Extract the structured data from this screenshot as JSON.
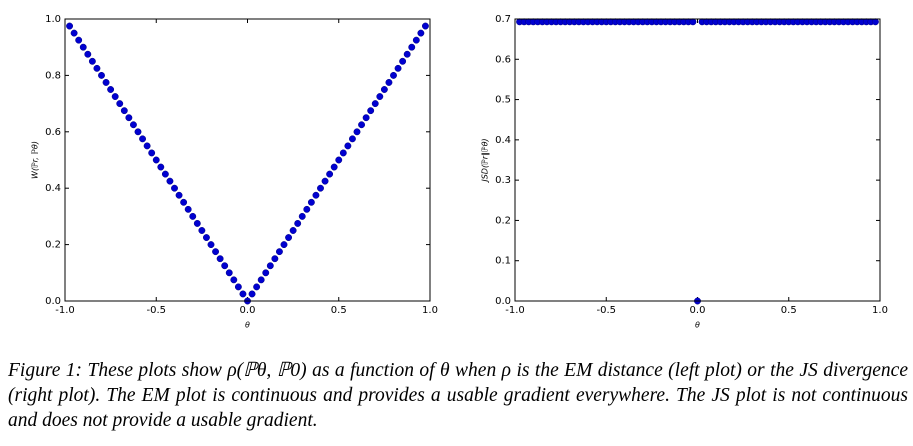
{
  "chart_data": [
    {
      "type": "scatter",
      "ylabel": "W(ℙr, ℙθ)",
      "xlabel": "θ",
      "color": "#0000d0",
      "x": [
        -0.975,
        -0.95,
        -0.925,
        -0.9,
        -0.875,
        -0.85,
        -0.825,
        -0.8,
        -0.775,
        -0.75,
        -0.725,
        -0.7,
        -0.675,
        -0.65,
        -0.625,
        -0.6,
        -0.575,
        -0.55,
        -0.525,
        -0.5,
        -0.475,
        -0.45,
        -0.425,
        -0.4,
        -0.375,
        -0.35,
        -0.325,
        -0.3,
        -0.275,
        -0.25,
        -0.225,
        -0.2,
        -0.175,
        -0.15,
        -0.125,
        -0.1,
        -0.075,
        -0.05,
        -0.025,
        0,
        0.025,
        0.05,
        0.075,
        0.1,
        0.125,
        0.15,
        0.175,
        0.2,
        0.225,
        0.25,
        0.275,
        0.3,
        0.325,
        0.35,
        0.375,
        0.4,
        0.425,
        0.45,
        0.475,
        0.5,
        0.525,
        0.55,
        0.575,
        0.6,
        0.625,
        0.65,
        0.675,
        0.7,
        0.725,
        0.75,
        0.775,
        0.8,
        0.825,
        0.85,
        0.875,
        0.9,
        0.925,
        0.95,
        0.975
      ],
      "values": [
        0.975,
        0.95,
        0.925,
        0.9,
        0.875,
        0.85,
        0.825,
        0.8,
        0.775,
        0.75,
        0.725,
        0.7,
        0.675,
        0.65,
        0.625,
        0.6,
        0.575,
        0.55,
        0.525,
        0.5,
        0.475,
        0.45,
        0.425,
        0.4,
        0.375,
        0.35,
        0.325,
        0.3,
        0.275,
        0.25,
        0.225,
        0.2,
        0.175,
        0.15,
        0.125,
        0.1,
        0.075,
        0.05,
        0.025,
        0,
        0.025,
        0.05,
        0.075,
        0.1,
        0.125,
        0.15,
        0.175,
        0.2,
        0.225,
        0.25,
        0.275,
        0.3,
        0.325,
        0.35,
        0.375,
        0.4,
        0.425,
        0.45,
        0.475,
        0.5,
        0.525,
        0.55,
        0.575,
        0.6,
        0.625,
        0.65,
        0.675,
        0.7,
        0.725,
        0.75,
        0.775,
        0.8,
        0.825,
        0.85,
        0.875,
        0.9,
        0.925,
        0.95,
        0.975
      ],
      "xlim": [
        -1,
        1
      ],
      "xticks": [
        {
          "value": -1,
          "label": "-1.0"
        },
        -0.5,
        {
          "value": 0,
          "label": "0.0"
        },
        0.5,
        {
          "value": 1,
          "label": "1.0"
        }
      ],
      "ylim": [
        0,
        1
      ],
      "yticks": [
        {
          "value": 0,
          "label": "0.0"
        },
        0.2,
        0.4,
        0.6,
        0.8,
        {
          "value": 1,
          "label": "1.0"
        }
      ]
    },
    {
      "type": "scatter",
      "ylabel": "JSD(ℙr‖ℙθ)",
      "xlabel": "θ",
      "color": "#0000d0",
      "x": [
        -0.975,
        -0.95,
        -0.925,
        -0.9,
        -0.875,
        -0.85,
        -0.825,
        -0.8,
        -0.775,
        -0.75,
        -0.725,
        -0.7,
        -0.675,
        -0.65,
        -0.625,
        -0.6,
        -0.575,
        -0.55,
        -0.525,
        -0.5,
        -0.475,
        -0.45,
        -0.425,
        -0.4,
        -0.375,
        -0.35,
        -0.325,
        -0.3,
        -0.275,
        -0.25,
        -0.225,
        -0.2,
        -0.175,
        -0.15,
        -0.125,
        -0.1,
        -0.075,
        -0.05,
        -0.025,
        0,
        0.025,
        0.05,
        0.075,
        0.1,
        0.125,
        0.15,
        0.175,
        0.2,
        0.225,
        0.25,
        0.275,
        0.3,
        0.325,
        0.35,
        0.375,
        0.4,
        0.425,
        0.45,
        0.475,
        0.5,
        0.525,
        0.55,
        0.575,
        0.6,
        0.625,
        0.65,
        0.675,
        0.7,
        0.725,
        0.75,
        0.775,
        0.8,
        0.825,
        0.85,
        0.875,
        0.9,
        0.925,
        0.95,
        0.975
      ],
      "values": [
        0.693,
        0.693,
        0.693,
        0.693,
        0.693,
        0.693,
        0.693,
        0.693,
        0.693,
        0.693,
        0.693,
        0.693,
        0.693,
        0.693,
        0.693,
        0.693,
        0.693,
        0.693,
        0.693,
        0.693,
        0.693,
        0.693,
        0.693,
        0.693,
        0.693,
        0.693,
        0.693,
        0.693,
        0.693,
        0.693,
        0.693,
        0.693,
        0.693,
        0.693,
        0.693,
        0.693,
        0.693,
        0.693,
        0.693,
        0,
        0.693,
        0.693,
        0.693,
        0.693,
        0.693,
        0.693,
        0.693,
        0.693,
        0.693,
        0.693,
        0.693,
        0.693,
        0.693,
        0.693,
        0.693,
        0.693,
        0.693,
        0.693,
        0.693,
        0.693,
        0.693,
        0.693,
        0.693,
        0.693,
        0.693,
        0.693,
        0.693,
        0.693,
        0.693,
        0.693,
        0.693,
        0.693,
        0.693,
        0.693,
        0.693,
        0.693,
        0.693,
        0.693,
        0.693
      ],
      "xlim": [
        -1,
        1
      ],
      "xticks": [
        {
          "value": -1,
          "label": "-1.0"
        },
        -0.5,
        {
          "value": 0,
          "label": "0.0"
        },
        0.5,
        {
          "value": 1,
          "label": "1.0"
        }
      ],
      "ylim": [
        0,
        0.7
      ],
      "yticks": [
        {
          "value": 0,
          "label": "0.0"
        },
        0.1,
        0.2,
        0.3,
        0.4,
        0.5,
        0.6,
        0.7
      ]
    }
  ],
  "caption": "Figure 1: These plots show ρ(ℙθ, ℙ0) as a function of θ when ρ is the EM distance (left plot) or the JS divergence (right plot). The EM plot is continuous and provides a usable gradient everywhere. The JS plot is not continuous and does not provide a usable gradient."
}
